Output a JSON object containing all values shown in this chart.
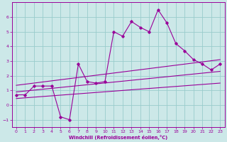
{
  "background_color": "#cce8e8",
  "grid_color": "#99cccc",
  "line_color": "#990099",
  "xlabel": "Windchill (Refroidissement éolien,°C)",
  "xlim": [
    -0.5,
    23.5
  ],
  "ylim": [
    -1.5,
    7.0
  ],
  "yticks": [
    -1,
    0,
    1,
    2,
    3,
    4,
    5,
    6
  ],
  "xticks": [
    0,
    1,
    2,
    3,
    4,
    5,
    6,
    7,
    8,
    9,
    10,
    11,
    12,
    13,
    14,
    15,
    16,
    17,
    18,
    19,
    20,
    21,
    22,
    23
  ],
  "main_line_x": [
    0,
    1,
    2,
    3,
    4,
    5,
    6,
    7,
    8,
    9,
    10,
    11,
    12,
    13,
    14,
    15,
    16,
    17,
    18,
    19,
    20,
    21,
    22,
    23
  ],
  "main_line_y": [
    0.7,
    0.7,
    1.3,
    1.3,
    1.3,
    -0.8,
    -1.0,
    2.8,
    1.6,
    1.5,
    1.6,
    5.0,
    4.7,
    5.7,
    5.3,
    5.0,
    6.5,
    5.6,
    4.2,
    3.7,
    3.1,
    2.8,
    2.4,
    2.8
  ],
  "upper_line_x": [
    0,
    23
  ],
  "upper_line_y": [
    1.35,
    3.1
  ],
  "lower_line_x": [
    0,
    23
  ],
  "lower_line_y": [
    0.45,
    1.5
  ],
  "middle_line_x": [
    0,
    23
  ],
  "middle_line_y": [
    0.9,
    2.3
  ]
}
